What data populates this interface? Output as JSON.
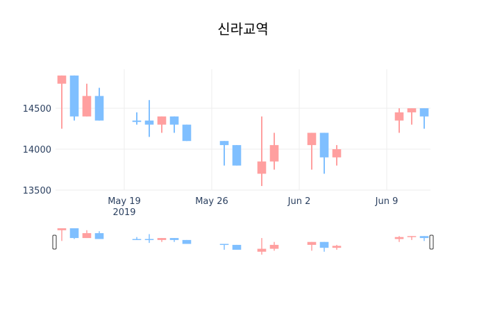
{
  "chart_data": {
    "type": "candlestick",
    "title": "신라교역",
    "xlabel": "",
    "ylabel": "",
    "ylim": [
      13500,
      14975
    ],
    "xlim": [
      "2019-05-13T12:00",
      "2019-06-12T12:00"
    ],
    "grid": true,
    "range_slider": true,
    "y_ticks": [
      13500,
      14000,
      14500
    ],
    "x_ticks": [
      {
        "date": "2019-05-19",
        "label": "May 19",
        "sublabel": "2019"
      },
      {
        "date": "2019-05-26",
        "label": "May 26",
        "sublabel": ""
      },
      {
        "date": "2019-06-02",
        "label": "Jun 2",
        "sublabel": ""
      },
      {
        "date": "2019-06-09",
        "label": "Jun 9",
        "sublabel": ""
      }
    ],
    "colors": {
      "increasing": "#ff9f9f",
      "decreasing": "#7fbfff",
      "grid": "#eeeeee"
    },
    "candles": [
      {
        "date": "2019-05-14",
        "open": 14800,
        "high": 14900,
        "low": 14250,
        "close": 14900
      },
      {
        "date": "2019-05-15",
        "open": 14900,
        "high": 14900,
        "low": 14350,
        "close": 14400
      },
      {
        "date": "2019-05-16",
        "open": 14400,
        "high": 14800,
        "low": 14400,
        "close": 14650
      },
      {
        "date": "2019-05-17",
        "open": 14650,
        "high": 14750,
        "low": 14350,
        "close": 14350
      },
      {
        "date": "2019-05-20",
        "open": 14350,
        "high": 14450,
        "low": 14300,
        "close": 14340
      },
      {
        "date": "2019-05-21",
        "open": 14350,
        "high": 14600,
        "low": 14150,
        "close": 14300
      },
      {
        "date": "2019-05-22",
        "open": 14300,
        "high": 14400,
        "low": 14200,
        "close": 14400
      },
      {
        "date": "2019-05-23",
        "open": 14400,
        "high": 14400,
        "low": 14200,
        "close": 14300
      },
      {
        "date": "2019-05-24",
        "open": 14300,
        "high": 14300,
        "low": 14100,
        "close": 14100
      },
      {
        "date": "2019-05-27",
        "open": 14100,
        "high": 14100,
        "low": 13800,
        "close": 14050
      },
      {
        "date": "2019-05-28",
        "open": 14050,
        "high": 14050,
        "low": 13800,
        "close": 13800
      },
      {
        "date": "2019-05-30",
        "open": 13700,
        "high": 14400,
        "low": 13550,
        "close": 13850
      },
      {
        "date": "2019-05-31",
        "open": 13850,
        "high": 14200,
        "low": 13750,
        "close": 14050
      },
      {
        "date": "2019-06-03",
        "open": 14050,
        "high": 14200,
        "low": 13750,
        "close": 14200
      },
      {
        "date": "2019-06-04",
        "open": 14200,
        "high": 14200,
        "low": 13700,
        "close": 13900
      },
      {
        "date": "2019-06-05",
        "open": 13900,
        "high": 14050,
        "low": 13800,
        "close": 14000
      },
      {
        "date": "2019-06-10",
        "open": 14350,
        "high": 14500,
        "low": 14200,
        "close": 14450
      },
      {
        "date": "2019-06-11",
        "open": 14450,
        "high": 14500,
        "low": 14300,
        "close": 14500
      },
      {
        "date": "2019-06-12",
        "open": 14500,
        "high": 14500,
        "low": 14250,
        "close": 14400
      }
    ]
  }
}
